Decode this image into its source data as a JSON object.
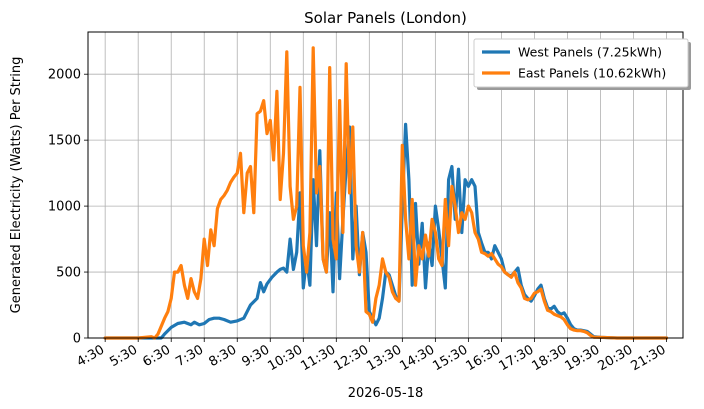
{
  "chart_data": {
    "type": "line",
    "title": "Solar Panels (London)",
    "xlabel": "2026-05-18",
    "ylabel": "Generated Electricity (Watts) Per String",
    "xlim": [
      4.5,
      22.0
    ],
    "ylim": [
      0,
      2320
    ],
    "x_ticks": [
      4.5,
      5.5,
      6.5,
      7.5,
      8.5,
      9.5,
      10.5,
      11.5,
      12.5,
      13.5,
      14.5,
      15.5,
      16.5,
      17.5,
      18.5,
      19.5,
      20.5,
      21.5
    ],
    "x_tick_labels": [
      "4:30",
      "5:30",
      "6:30",
      "7:30",
      "8:30",
      "9:30",
      "10:30",
      "11:30",
      "12:30",
      "13:30",
      "14:30",
      "15:30",
      "16:30",
      "17:30",
      "18:30",
      "19:30",
      "20:30",
      "21:30"
    ],
    "y_ticks": [
      0,
      500,
      1000,
      1500,
      2000
    ],
    "y_tick_labels": [
      "0",
      "500",
      "1000",
      "1500",
      "2000"
    ],
    "grid": true,
    "legend_position": "top-right",
    "series": [
      {
        "name": "West Panels (7.25kWh)",
        "color": "#1f77b4",
        "points": [
          [
            4.5,
            0
          ],
          [
            5.0,
            0
          ],
          [
            5.5,
            0
          ],
          [
            6.0,
            0
          ],
          [
            6.2,
            0
          ],
          [
            6.3,
            30
          ],
          [
            6.5,
            80
          ],
          [
            6.7,
            110
          ],
          [
            6.9,
            120
          ],
          [
            7.0,
            110
          ],
          [
            7.1,
            100
          ],
          [
            7.2,
            120
          ],
          [
            7.35,
            100
          ],
          [
            7.5,
            110
          ],
          [
            7.65,
            140
          ],
          [
            7.8,
            150
          ],
          [
            7.95,
            150
          ],
          [
            8.1,
            140
          ],
          [
            8.3,
            120
          ],
          [
            8.5,
            130
          ],
          [
            8.7,
            150
          ],
          [
            8.9,
            250
          ],
          [
            9.1,
            300
          ],
          [
            9.2,
            420
          ],
          [
            9.3,
            350
          ],
          [
            9.4,
            410
          ],
          [
            9.55,
            460
          ],
          [
            9.7,
            500
          ],
          [
            9.8,
            520
          ],
          [
            9.9,
            530
          ],
          [
            10.0,
            500
          ],
          [
            10.1,
            750
          ],
          [
            10.2,
            520
          ],
          [
            10.3,
            650
          ],
          [
            10.4,
            1100
          ],
          [
            10.5,
            380
          ],
          [
            10.6,
            600
          ],
          [
            10.7,
            400
          ],
          [
            10.8,
            1200
          ],
          [
            10.9,
            700
          ],
          [
            11.0,
            1420
          ],
          [
            11.1,
            600
          ],
          [
            11.2,
            500
          ],
          [
            11.3,
            950
          ],
          [
            11.4,
            350
          ],
          [
            11.5,
            1100
          ],
          [
            11.6,
            450
          ],
          [
            11.7,
            900
          ],
          [
            11.8,
            1300
          ],
          [
            11.9,
            1600
          ],
          [
            12.0,
            600
          ],
          [
            12.1,
            1000
          ],
          [
            12.2,
            480
          ],
          [
            12.3,
            800
          ],
          [
            12.4,
            650
          ],
          [
            12.5,
            200
          ],
          [
            12.6,
            150
          ],
          [
            12.7,
            100
          ],
          [
            12.8,
            150
          ],
          [
            12.9,
            300
          ],
          [
            13.0,
            500
          ],
          [
            13.1,
            480
          ],
          [
            13.2,
            400
          ],
          [
            13.3,
            320
          ],
          [
            13.4,
            280
          ],
          [
            13.5,
            1000
          ],
          [
            13.6,
            1620
          ],
          [
            13.7,
            1200
          ],
          [
            13.8,
            400
          ],
          [
            13.9,
            1020
          ],
          [
            14.0,
            560
          ],
          [
            14.1,
            870
          ],
          [
            14.2,
            380
          ],
          [
            14.3,
            720
          ],
          [
            14.4,
            550
          ],
          [
            14.5,
            1000
          ],
          [
            14.6,
            820
          ],
          [
            14.7,
            600
          ],
          [
            14.8,
            380
          ],
          [
            14.9,
            1200
          ],
          [
            15.0,
            1300
          ],
          [
            15.1,
            900
          ],
          [
            15.2,
            1280
          ],
          [
            15.3,
            800
          ],
          [
            15.4,
            1200
          ],
          [
            15.5,
            1150
          ],
          [
            15.6,
            1200
          ],
          [
            15.7,
            1150
          ],
          [
            15.8,
            800
          ],
          [
            15.9,
            720
          ],
          [
            16.0,
            650
          ],
          [
            16.1,
            650
          ],
          [
            16.2,
            600
          ],
          [
            16.3,
            700
          ],
          [
            16.4,
            650
          ],
          [
            16.5,
            600
          ],
          [
            16.6,
            500
          ],
          [
            16.7,
            480
          ],
          [
            16.8,
            470
          ],
          [
            16.9,
            500
          ],
          [
            17.0,
            530
          ],
          [
            17.1,
            400
          ],
          [
            17.2,
            330
          ],
          [
            17.3,
            300
          ],
          [
            17.4,
            280
          ],
          [
            17.5,
            320
          ],
          [
            17.6,
            370
          ],
          [
            17.7,
            400
          ],
          [
            17.8,
            300
          ],
          [
            17.9,
            230
          ],
          [
            18.0,
            220
          ],
          [
            18.1,
            240
          ],
          [
            18.2,
            200
          ],
          [
            18.3,
            180
          ],
          [
            18.4,
            190
          ],
          [
            18.5,
            150
          ],
          [
            18.6,
            100
          ],
          [
            18.7,
            70
          ],
          [
            18.8,
            60
          ],
          [
            18.9,
            60
          ],
          [
            19.0,
            55
          ],
          [
            19.1,
            50
          ],
          [
            19.2,
            30
          ],
          [
            19.3,
            10
          ],
          [
            19.5,
            5
          ],
          [
            20.0,
            0
          ],
          [
            21.0,
            0
          ],
          [
            21.5,
            0
          ]
        ]
      },
      {
        "name": "East Panels (10.62kWh)",
        "color": "#ff7f0e",
        "points": [
          [
            4.5,
            0
          ],
          [
            5.0,
            0
          ],
          [
            5.5,
            0
          ],
          [
            5.9,
            10
          ],
          [
            6.0,
            0
          ],
          [
            6.1,
            30
          ],
          [
            6.3,
            150
          ],
          [
            6.4,
            200
          ],
          [
            6.5,
            300
          ],
          [
            6.6,
            500
          ],
          [
            6.7,
            500
          ],
          [
            6.8,
            550
          ],
          [
            6.9,
            400
          ],
          [
            7.0,
            300
          ],
          [
            7.1,
            450
          ],
          [
            7.2,
            350
          ],
          [
            7.3,
            300
          ],
          [
            7.4,
            450
          ],
          [
            7.5,
            750
          ],
          [
            7.6,
            550
          ],
          [
            7.7,
            820
          ],
          [
            7.8,
            700
          ],
          [
            7.9,
            980
          ],
          [
            8.0,
            1050
          ],
          [
            8.1,
            1080
          ],
          [
            8.2,
            1120
          ],
          [
            8.3,
            1180
          ],
          [
            8.4,
            1220
          ],
          [
            8.5,
            1250
          ],
          [
            8.6,
            1400
          ],
          [
            8.7,
            950
          ],
          [
            8.8,
            1250
          ],
          [
            8.9,
            1300
          ],
          [
            9.0,
            950
          ],
          [
            9.1,
            1700
          ],
          [
            9.2,
            1720
          ],
          [
            9.3,
            1800
          ],
          [
            9.4,
            1550
          ],
          [
            9.5,
            1650
          ],
          [
            9.6,
            1350
          ],
          [
            9.7,
            1870
          ],
          [
            9.8,
            1050
          ],
          [
            9.9,
            1400
          ],
          [
            10.0,
            2170
          ],
          [
            10.1,
            1150
          ],
          [
            10.2,
            900
          ],
          [
            10.3,
            1000
          ],
          [
            10.4,
            1900
          ],
          [
            10.5,
            700
          ],
          [
            10.6,
            500
          ],
          [
            10.7,
            800
          ],
          [
            10.8,
            2200
          ],
          [
            10.9,
            1100
          ],
          [
            11.0,
            1300
          ],
          [
            11.1,
            600
          ],
          [
            11.2,
            500
          ],
          [
            11.3,
            2050
          ],
          [
            11.4,
            750
          ],
          [
            11.5,
            600
          ],
          [
            11.6,
            1800
          ],
          [
            11.7,
            800
          ],
          [
            11.8,
            2080
          ],
          [
            11.9,
            1100
          ],
          [
            12.0,
            1600
          ],
          [
            12.1,
            700
          ],
          [
            12.2,
            500
          ],
          [
            12.3,
            800
          ],
          [
            12.4,
            200
          ],
          [
            12.5,
            180
          ],
          [
            12.6,
            120
          ],
          [
            12.7,
            300
          ],
          [
            12.8,
            400
          ],
          [
            12.9,
            600
          ],
          [
            13.0,
            500
          ],
          [
            13.1,
            460
          ],
          [
            13.2,
            350
          ],
          [
            13.3,
            300
          ],
          [
            13.4,
            280
          ],
          [
            13.5,
            1460
          ],
          [
            13.6,
            900
          ],
          [
            13.7,
            600
          ],
          [
            13.8,
            1050
          ],
          [
            13.9,
            400
          ],
          [
            14.0,
            700
          ],
          [
            14.1,
            600
          ],
          [
            14.2,
            780
          ],
          [
            14.3,
            620
          ],
          [
            14.4,
            900
          ],
          [
            14.5,
            800
          ],
          [
            14.6,
            600
          ],
          [
            14.7,
            550
          ],
          [
            14.8,
            1050
          ],
          [
            14.9,
            700
          ],
          [
            15.0,
            1150
          ],
          [
            15.1,
            1000
          ],
          [
            15.2,
            800
          ],
          [
            15.3,
            950
          ],
          [
            15.4,
            900
          ],
          [
            15.5,
            1000
          ],
          [
            15.6,
            950
          ],
          [
            15.7,
            800
          ],
          [
            15.8,
            750
          ],
          [
            15.9,
            650
          ],
          [
            16.0,
            640
          ],
          [
            16.1,
            620
          ],
          [
            16.2,
            640
          ],
          [
            16.3,
            600
          ],
          [
            16.4,
            560
          ],
          [
            16.5,
            540
          ],
          [
            16.6,
            500
          ],
          [
            16.7,
            480
          ],
          [
            16.8,
            460
          ],
          [
            16.9,
            500
          ],
          [
            17.0,
            420
          ],
          [
            17.1,
            380
          ],
          [
            17.2,
            300
          ],
          [
            17.3,
            290
          ],
          [
            17.4,
            300
          ],
          [
            17.5,
            340
          ],
          [
            17.6,
            350
          ],
          [
            17.7,
            370
          ],
          [
            17.8,
            280
          ],
          [
            17.9,
            210
          ],
          [
            18.0,
            200
          ],
          [
            18.1,
            180
          ],
          [
            18.2,
            170
          ],
          [
            18.3,
            160
          ],
          [
            18.4,
            140
          ],
          [
            18.5,
            100
          ],
          [
            18.6,
            70
          ],
          [
            18.7,
            60
          ],
          [
            18.8,
            55
          ],
          [
            18.9,
            55
          ],
          [
            19.0,
            50
          ],
          [
            19.1,
            40
          ],
          [
            19.2,
            20
          ],
          [
            19.3,
            5
          ],
          [
            19.5,
            5
          ],
          [
            20.0,
            0
          ],
          [
            21.0,
            0
          ],
          [
            21.5,
            0
          ]
        ]
      }
    ]
  }
}
